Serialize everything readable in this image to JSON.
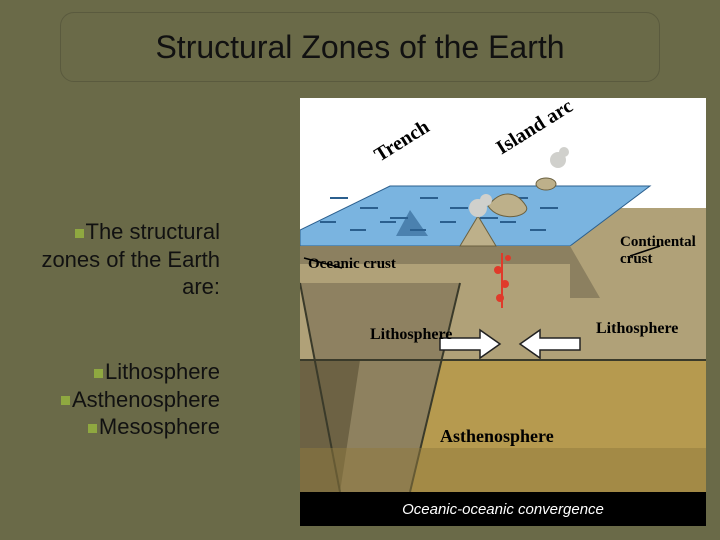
{
  "title": "Structural Zones of the Earth",
  "intro": {
    "l1": "The structural",
    "l2": "zones of the Earth",
    "l3": "are:"
  },
  "list": {
    "item1": "Lithosphere",
    "item2": "Asthenosphere",
    "item3": "Mesosphere"
  },
  "diagram": {
    "label_trench": "Trench",
    "label_island_arc": "Island arc",
    "label_oceanic_crust": "Oceanic crust",
    "label_continental_crust": "Continental crust",
    "label_lithosphere_left": "Lithosphere",
    "label_lithosphere_right": "Lithosphere",
    "label_asthenosphere": "Asthenosphere",
    "caption": "Oceanic-oceanic convergence",
    "colors": {
      "ocean": "#7ab4e0",
      "ocean_edge": "#2b5f8e",
      "crust": "#b0a178",
      "crust_shadow": "#8c8060",
      "lithosphere_deep": "#6d6244",
      "asthenosphere": "#b69a4f",
      "asthenosphere_dark": "#8f7a3e",
      "magma": "#e03a2a",
      "island": "#bdb08a",
      "smoke": "#d0d0cc",
      "arrow": "#222"
    }
  }
}
